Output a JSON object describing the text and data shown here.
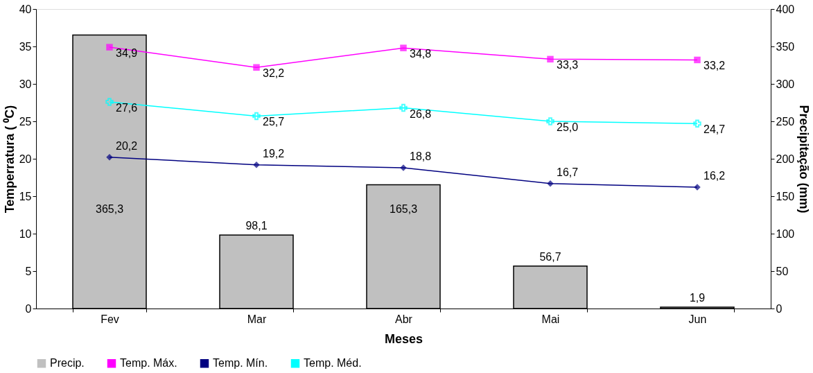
{
  "chart_data": {
    "type": "bar",
    "xlabel": "Meses",
    "ylabel": "Temperratura ( ⁰C)",
    "y2label": "Precipitação (mm)",
    "categories": [
      "Fev",
      "Mar",
      "Abr",
      "Mai",
      "Jun"
    ],
    "series": [
      {
        "name": "Precip.",
        "axis": "y2",
        "color": "#c0c0c0",
        "values": [
          365.3,
          98.1,
          165.3,
          56.7,
          1.9
        ],
        "value_labels": [
          "365,3",
          "98,1",
          "165,3",
          "56,7",
          "1,9"
        ]
      },
      {
        "name": "Temp. Máx.",
        "type": "line",
        "marker": "square",
        "color": "#ff00ff",
        "values": [
          34.9,
          32.2,
          34.8,
          33.3,
          33.2
        ],
        "value_labels": [
          "34,9",
          "32,2",
          "34,8",
          "33,3",
          "33,2"
        ]
      },
      {
        "name": "Temp. Mín.",
        "type": "line",
        "marker": "diamond",
        "color": "#000080",
        "values": [
          20.2,
          19.2,
          18.8,
          16.7,
          16.2
        ],
        "value_labels": [
          "20,2",
          "19,2",
          "18,8",
          "16,7",
          "16,2"
        ]
      },
      {
        "name": "Temp. Méd.",
        "type": "line",
        "marker": "cross",
        "color": "#00ffff",
        "values": [
          27.6,
          25.7,
          26.8,
          25.0,
          24.7
        ],
        "value_labels": [
          "27,6",
          "25,7",
          "26,8",
          "25,0",
          "24,7"
        ]
      }
    ],
    "ylim": [
      0,
      40
    ],
    "yticks": [
      0,
      5,
      10,
      15,
      20,
      25,
      30,
      35,
      40
    ],
    "y2lim": [
      0,
      400
    ],
    "y2ticks": [
      0,
      50,
      100,
      150,
      200,
      250,
      300,
      350,
      400
    ],
    "grid": false,
    "legend": "bottom",
    "line_style": "solid"
  }
}
